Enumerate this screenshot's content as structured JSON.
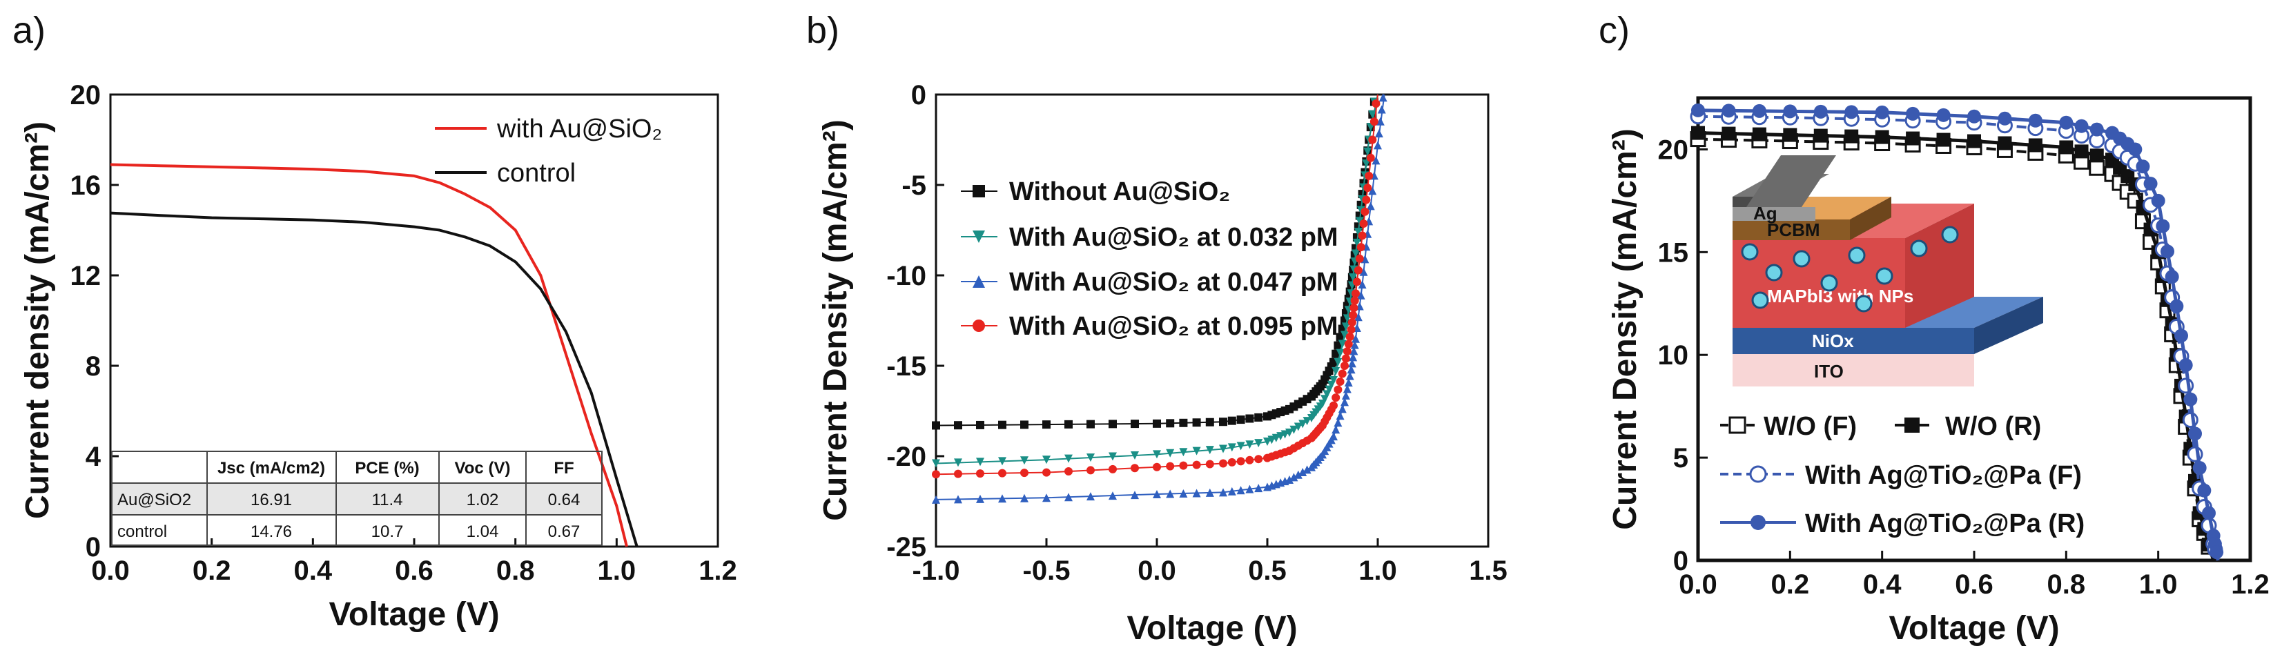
{
  "chart_data": [
    {
      "type": "line",
      "panel_label": "a)",
      "xlabel": "Voltage (V)",
      "ylabel": "Current density (mA/cm²)",
      "xlim": [
        0.0,
        1.2
      ],
      "ylim": [
        0,
        20
      ],
      "xticks": [
        "0.0",
        "0.2",
        "0.4",
        "0.6",
        "0.8",
        "1.0",
        "1.2"
      ],
      "yticks": [
        "0",
        "4",
        "8",
        "12",
        "16",
        "20"
      ],
      "legend_position": "top-right",
      "series": [
        {
          "name": "with Au@SiO₂",
          "color": "#e8251f",
          "x": [
            0.0,
            0.1,
            0.2,
            0.3,
            0.4,
            0.5,
            0.6,
            0.65,
            0.7,
            0.75,
            0.8,
            0.85,
            0.9,
            0.95,
            1.0,
            1.02
          ],
          "y": [
            16.9,
            16.85,
            16.8,
            16.75,
            16.7,
            16.6,
            16.4,
            16.1,
            15.6,
            15.0,
            14.0,
            12.0,
            8.5,
            5.0,
            1.8,
            0.0
          ]
        },
        {
          "name": "control",
          "color": "#111111",
          "x": [
            0.0,
            0.1,
            0.2,
            0.3,
            0.4,
            0.5,
            0.6,
            0.65,
            0.7,
            0.75,
            0.8,
            0.85,
            0.9,
            0.95,
            1.0,
            1.04
          ],
          "y": [
            14.76,
            14.65,
            14.55,
            14.5,
            14.45,
            14.35,
            14.15,
            14.0,
            13.7,
            13.3,
            12.6,
            11.4,
            9.5,
            6.8,
            3.0,
            0.0
          ]
        }
      ],
      "table": {
        "headers": [
          "",
          "Jsc (mA/cm2)",
          "PCE (%)",
          "Voc (V)",
          "FF"
        ],
        "rows": [
          [
            "Au@SiO2",
            "16.91",
            "11.4",
            "1.02",
            "0.64"
          ],
          [
            "control",
            "14.76",
            "10.7",
            "1.04",
            "0.67"
          ]
        ]
      }
    },
    {
      "type": "line",
      "panel_label": "b)",
      "xlabel": "Voltage (V)",
      "ylabel": "Current Density (mA/cm²)",
      "xlim": [
        -1.0,
        1.5
      ],
      "ylim": [
        -25,
        0
      ],
      "xticks": [
        "-1.0",
        "-0.5",
        "0.0",
        "0.5",
        "1.0",
        "1.5"
      ],
      "yticks": [
        "0",
        "-5",
        "-10",
        "-15",
        "-20",
        "-25"
      ],
      "legend_position": "upper-left",
      "series": [
        {
          "name": "Without Au@SiO₂",
          "color": "#111111",
          "marker": "square",
          "x": [
            -1.0,
            -0.5,
            0.0,
            0.3,
            0.5,
            0.6,
            0.7,
            0.75,
            0.8,
            0.85,
            0.88,
            0.9,
            0.93,
            0.96,
            1.0
          ],
          "y": [
            -18.3,
            -18.25,
            -18.2,
            -18.1,
            -17.8,
            -17.4,
            -16.7,
            -16.0,
            -14.8,
            -12.5,
            -10.5,
            -8.5,
            -5.5,
            -2.5,
            1.0
          ]
        },
        {
          "name": "With Au@SiO₂ at 0.032 pM",
          "color": "#1a8f86",
          "marker": "triangle-down",
          "x": [
            -1.0,
            -0.5,
            0.0,
            0.3,
            0.5,
            0.6,
            0.7,
            0.75,
            0.8,
            0.85,
            0.88,
            0.9,
            0.93,
            0.96,
            1.0
          ],
          "y": [
            -20.4,
            -20.2,
            -19.9,
            -19.6,
            -19.2,
            -18.7,
            -17.9,
            -17.1,
            -15.8,
            -13.3,
            -11.0,
            -8.8,
            -5.8,
            -2.5,
            1.0
          ]
        },
        {
          "name": "With Au@SiO₂ at 0.047 pM",
          "color": "#2f5fbf",
          "marker": "triangle-up",
          "x": [
            -1.0,
            -0.5,
            0.0,
            0.3,
            0.5,
            0.6,
            0.7,
            0.75,
            0.8,
            0.85,
            0.88,
            0.9,
            0.93,
            0.96,
            1.0,
            1.03
          ],
          "y": [
            -22.4,
            -22.3,
            -22.1,
            -22.0,
            -21.7,
            -21.3,
            -20.6,
            -19.9,
            -18.9,
            -17.0,
            -15.2,
            -13.5,
            -10.5,
            -7.0,
            -2.8,
            0.5
          ]
        },
        {
          "name": "With Au@SiO₂ at 0.095 pM",
          "color": "#e8251f",
          "marker": "circle",
          "x": [
            -1.0,
            -0.5,
            0.0,
            0.3,
            0.5,
            0.6,
            0.7,
            0.75,
            0.8,
            0.85,
            0.88,
            0.9,
            0.93,
            0.96,
            1.0
          ],
          "y": [
            -21.0,
            -20.9,
            -20.6,
            -20.4,
            -20.1,
            -19.7,
            -19.0,
            -18.3,
            -17.2,
            -15.0,
            -13.0,
            -11.0,
            -7.8,
            -4.5,
            0.5
          ]
        }
      ]
    },
    {
      "type": "line",
      "panel_label": "c)",
      "xlabel": "Voltage (V)",
      "ylabel": "Current Density (mA/cm²)",
      "xlim": [
        0.0,
        1.2
      ],
      "ylim": [
        0,
        22.5
      ],
      "xticks": [
        "0.0",
        "0.2",
        "0.4",
        "0.6",
        "0.8",
        "1.0",
        "1.2"
      ],
      "yticks": [
        "0",
        "5",
        "10",
        "15",
        "20"
      ],
      "legend_position": "bottom-left",
      "series": [
        {
          "name": "W/O (F)",
          "color": "#111111",
          "marker": "open-square",
          "dash": "dashed",
          "x": [
            0.0,
            0.2,
            0.4,
            0.6,
            0.8,
            0.9,
            0.95,
            1.0,
            1.03,
            1.06,
            1.09,
            1.12
          ],
          "y": [
            20.5,
            20.4,
            20.3,
            20.1,
            19.7,
            18.8,
            17.5,
            14.5,
            11.0,
            6.5,
            2.0,
            0.0
          ]
        },
        {
          "name": "W/O (R)",
          "color": "#111111",
          "marker": "filled-square",
          "dash": "solid",
          "x": [
            0.0,
            0.2,
            0.4,
            0.6,
            0.8,
            0.9,
            0.95,
            1.0,
            1.03,
            1.06,
            1.09,
            1.12
          ],
          "y": [
            20.8,
            20.7,
            20.6,
            20.4,
            20.1,
            19.5,
            18.3,
            15.0,
            11.5,
            7.0,
            2.3,
            0.0
          ]
        },
        {
          "name": "With Ag@TiO₂@Pa (F)",
          "color": "#3a59b0",
          "marker": "open-circle",
          "dash": "dashed",
          "x": [
            0.0,
            0.2,
            0.4,
            0.6,
            0.8,
            0.9,
            0.95,
            1.0,
            1.03,
            1.06,
            1.09,
            1.12,
            1.13
          ],
          "y": [
            21.6,
            21.55,
            21.45,
            21.3,
            20.9,
            20.2,
            19.3,
            16.3,
            12.8,
            8.5,
            3.5,
            0.8,
            0.0
          ]
        },
        {
          "name": "With Ag@TiO₂@Pa (R)",
          "color": "#3a59b0",
          "marker": "filled-circle",
          "dash": "solid",
          "x": [
            0.0,
            0.2,
            0.4,
            0.6,
            0.8,
            0.9,
            0.95,
            1.0,
            1.03,
            1.06,
            1.09,
            1.12,
            1.13
          ],
          "y": [
            21.9,
            21.85,
            21.8,
            21.6,
            21.3,
            20.8,
            20.0,
            17.5,
            13.8,
            9.5,
            4.5,
            1.2,
            0.0
          ]
        }
      ],
      "inset_device_layers": [
        "Ag",
        "PCBM",
        "MAPbI3 with NPs",
        "NiOx",
        "ITO"
      ]
    }
  ]
}
